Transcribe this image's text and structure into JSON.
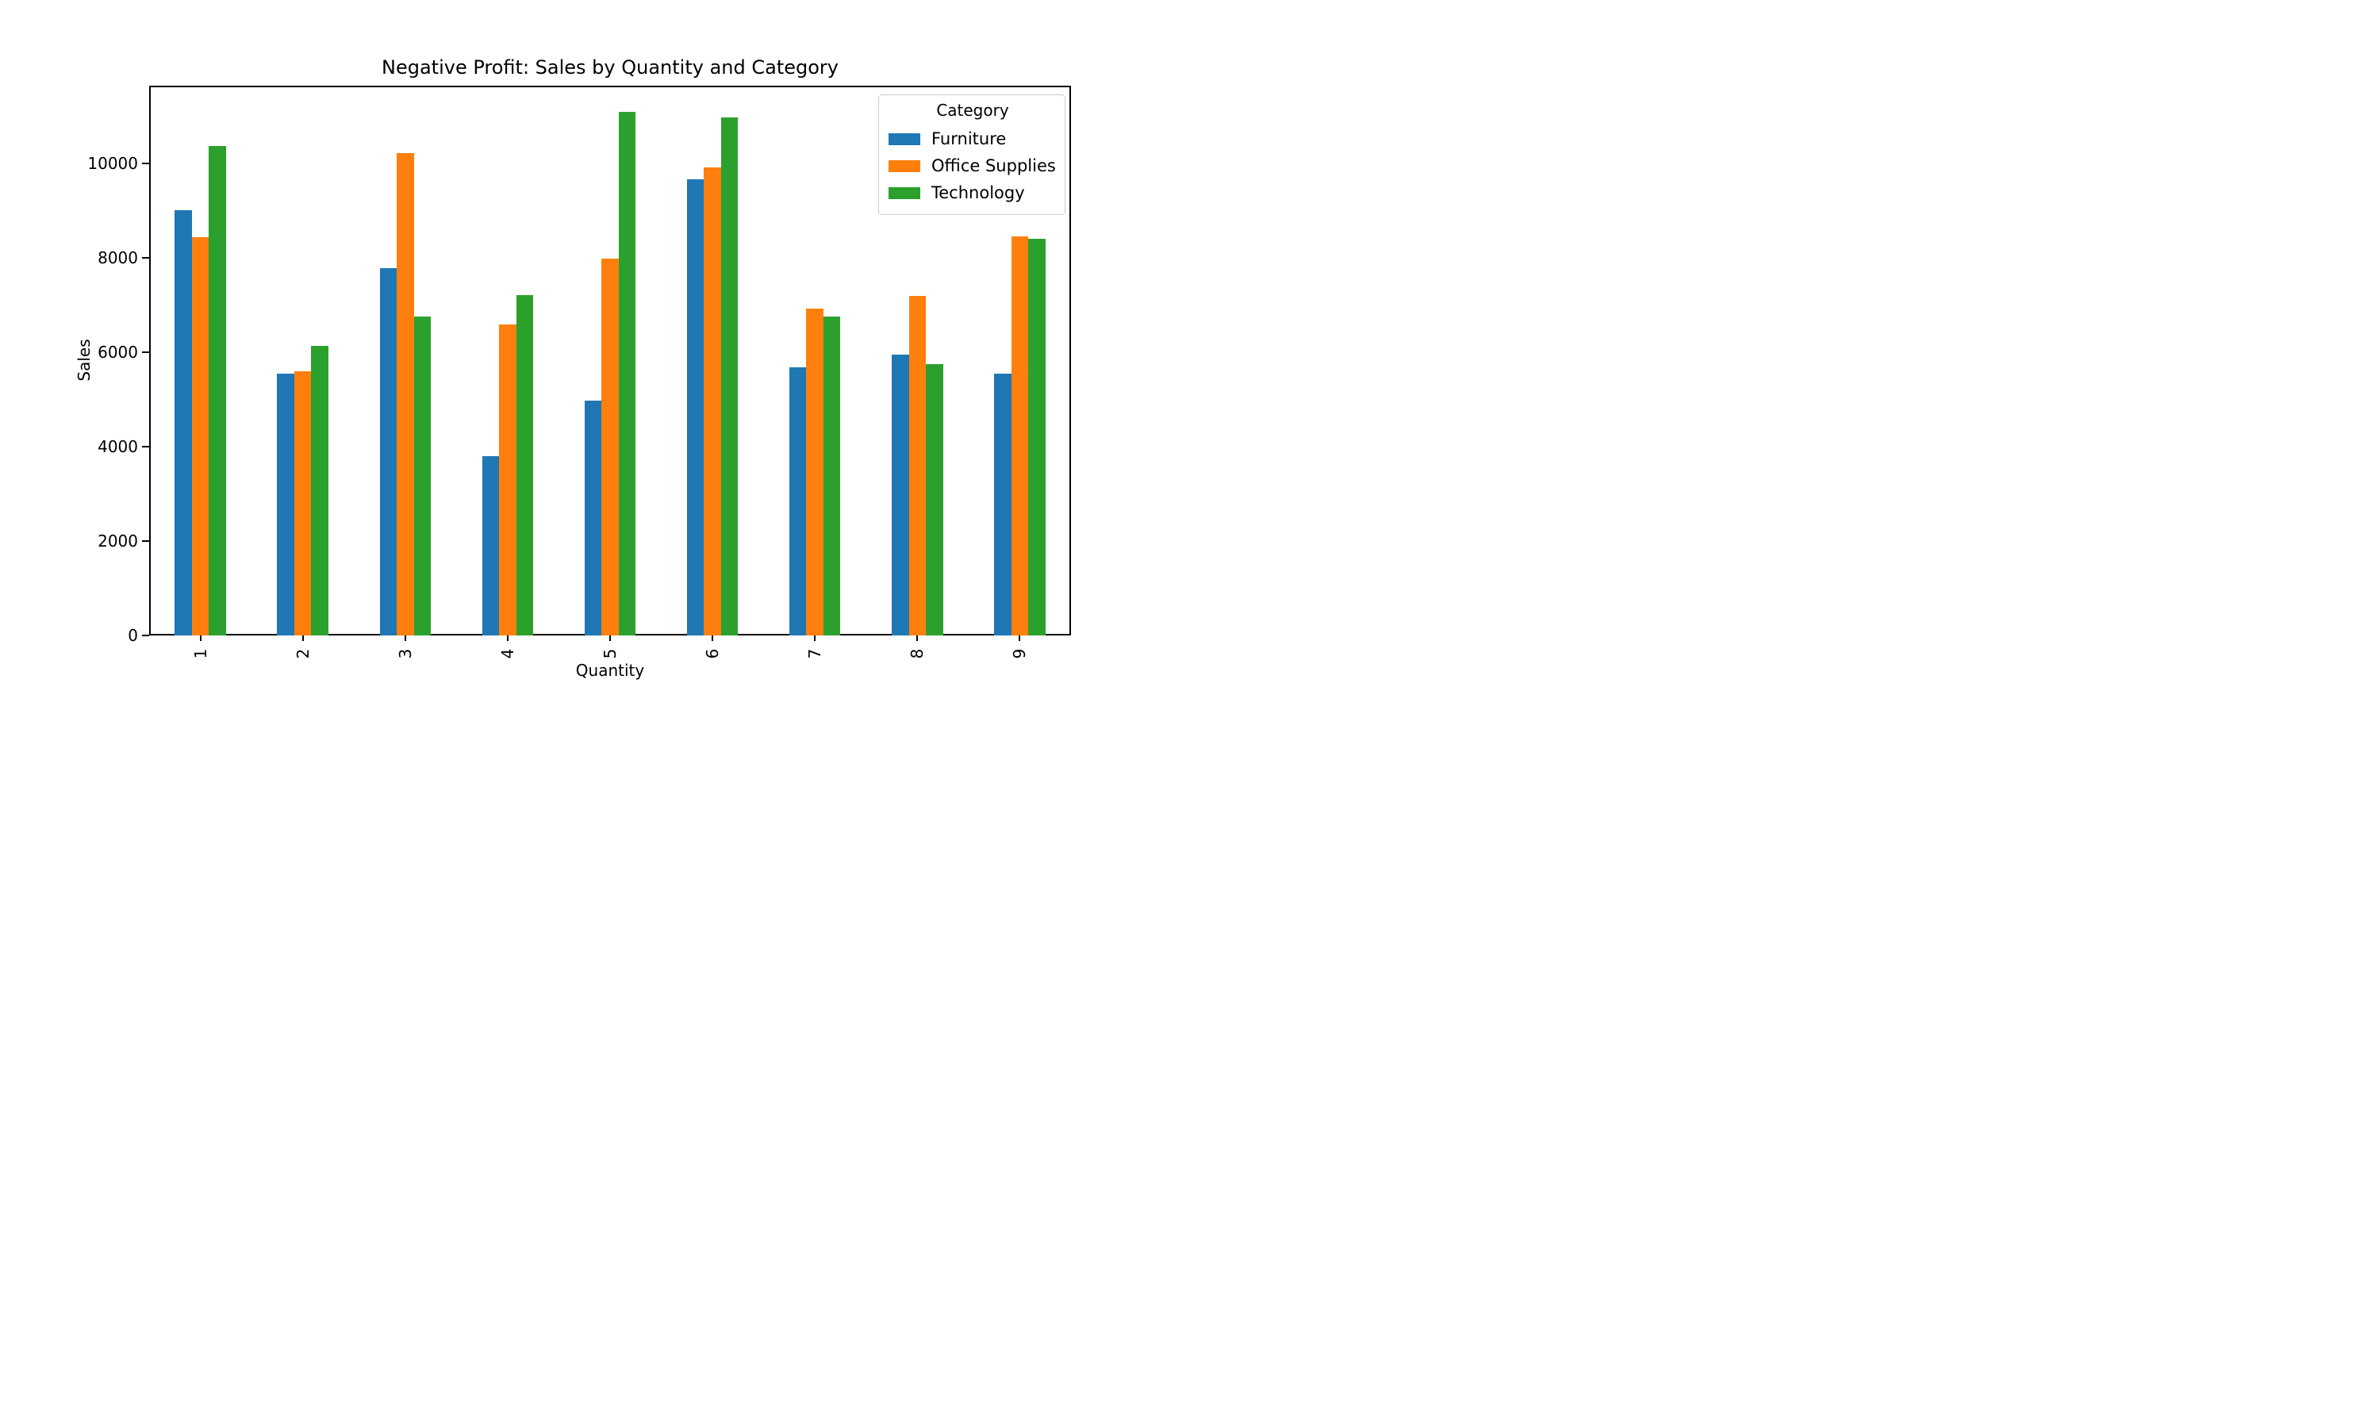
{
  "figure_title": "Negative Profit: Sales by Quantity and Category",
  "chart_data": {
    "type": "bar",
    "title": "Negative Profit: Sales by Quantity and Category",
    "xlabel": "Quantity",
    "ylabel": "Sales",
    "categories": [
      "1",
      "2",
      "3",
      "4",
      "5",
      "6",
      "7",
      "8",
      "9"
    ],
    "series": [
      {
        "name": "Furniture",
        "color": "#1f77b4",
        "values": [
          9000,
          5540,
          7780,
          3790,
          4980,
          9660,
          5680,
          5950,
          5550
        ]
      },
      {
        "name": "Office Supplies",
        "color": "#ff7f0e",
        "values": [
          8440,
          5590,
          10220,
          6590,
          7980,
          9910,
          6920,
          7190,
          8450
        ]
      },
      {
        "name": "Technology",
        "color": "#2ca02c",
        "values": [
          10360,
          6130,
          6760,
          7210,
          11090,
          10980,
          6760,
          5750,
          8400
        ]
      }
    ],
    "ylim": [
      0,
      11645
    ],
    "yticks": [
      0,
      2000,
      4000,
      6000,
      8000,
      10000
    ],
    "grid": false,
    "xtick_rotation": 90,
    "legend": {
      "title": "Category",
      "position": "upper right"
    }
  }
}
